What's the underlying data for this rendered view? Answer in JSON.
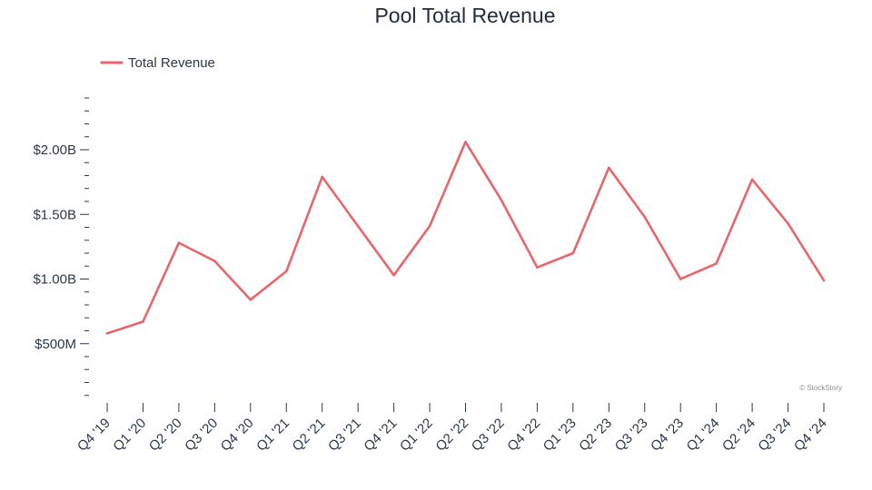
{
  "chart_data": {
    "type": "line",
    "title": "Pool Total Revenue",
    "xlabel": "",
    "ylabel": "",
    "categories": [
      "Q4 '19",
      "Q1 '20",
      "Q2 '20",
      "Q3 '20",
      "Q4 '20",
      "Q1 '21",
      "Q2 '21",
      "Q3 '21",
      "Q4 '21",
      "Q1 '22",
      "Q2 '22",
      "Q3 '22",
      "Q4 '22",
      "Q1 '23",
      "Q2 '23",
      "Q3 '23",
      "Q4 '23",
      "Q1 '24",
      "Q2 '24",
      "Q3 '24",
      "Q4 '24"
    ],
    "series": [
      {
        "name": "Total Revenue",
        "color": "#e8656a",
        "values": [
          0.58,
          0.67,
          1.28,
          1.14,
          0.84,
          1.06,
          1.79,
          1.41,
          1.03,
          1.41,
          2.06,
          1.61,
          1.09,
          1.2,
          1.86,
          1.48,
          1.0,
          1.12,
          1.77,
          1.43,
          0.99
        ]
      }
    ],
    "ylim": [
      0,
      2.4
    ],
    "yticks": [
      0.5,
      1.0,
      1.5,
      2.0
    ],
    "ytick_labels": [
      "$500M",
      "$1.00B",
      "$1.50B",
      "$2.00B"
    ],
    "grid": false,
    "legend_position": "top-left"
  },
  "credit": "© StockStory"
}
